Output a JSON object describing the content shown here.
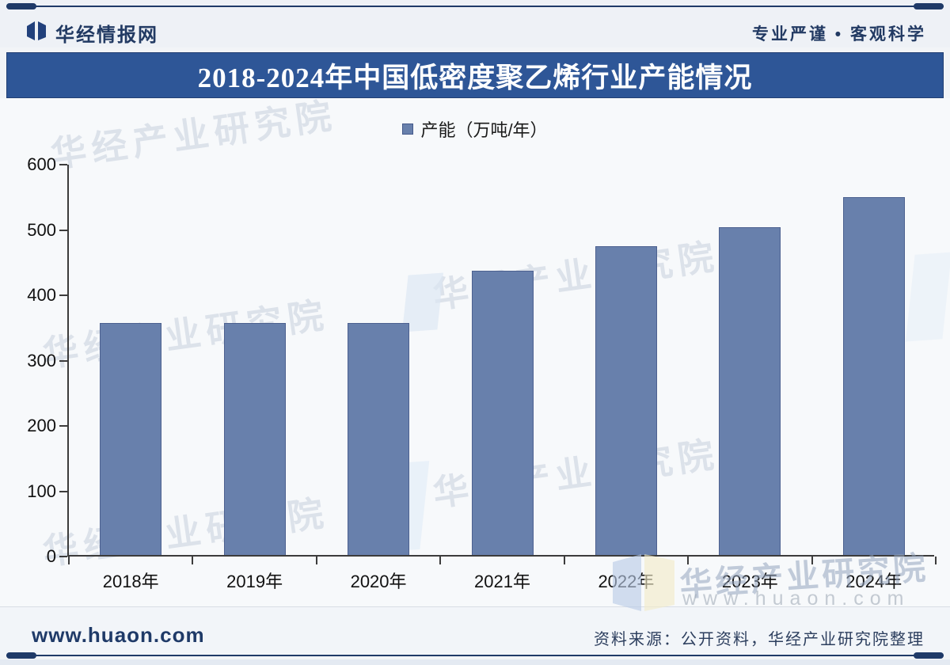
{
  "header": {
    "brand": "华经情报网",
    "slogan": "专业严谨 • 客观科学"
  },
  "chart_data": {
    "type": "bar",
    "title": "2018-2024年中国低密度聚乙烯行业产能情况",
    "legend_label": "产能（万吨/年）",
    "legend_position": "top-center",
    "categories": [
      "2018年",
      "2019年",
      "2020年",
      "2021年",
      "2022年",
      "2023年",
      "2024年"
    ],
    "values": [
      355,
      355,
      355,
      435,
      473,
      502,
      548
    ],
    "xlabel": "",
    "ylabel": "",
    "ylim": [
      0,
      600
    ],
    "yticks": [
      0,
      100,
      200,
      300,
      400,
      500,
      600
    ],
    "grid": false,
    "bar_color": "#6880ac",
    "bar_border_color": "#4d6190"
  },
  "watermarks": {
    "diagonal_text": "华经产业研究院",
    "front_name": "华经产业研究院",
    "front_site": "www.huaon.com"
  },
  "footer": {
    "site": "www.huaon.com",
    "source": "资料来源：公开资料，华经产业研究院整理"
  },
  "colors": {
    "navy_rule": "#1f3a68",
    "title_band_bg": "#2e5697",
    "title_text": "#ffffff",
    "bar_fill": "#6880ac",
    "page_bg": "#f2f4f7"
  }
}
